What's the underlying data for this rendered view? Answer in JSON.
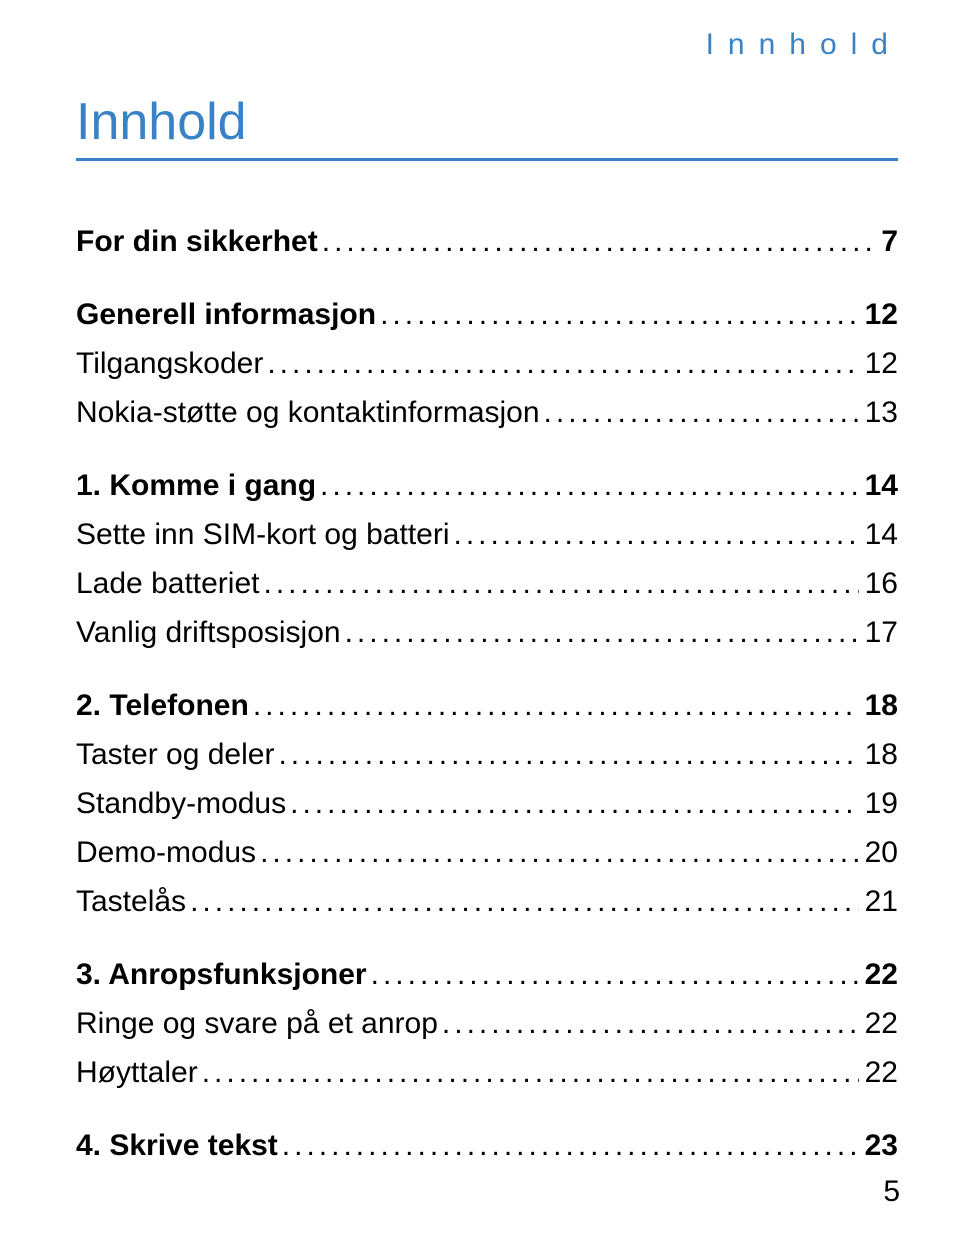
{
  "header_text": "Innhold",
  "main_title": "Innhold",
  "page_number": "5",
  "colors": {
    "accent": "#3882c5",
    "text": "#000000",
    "background": "#ffffff"
  },
  "typography": {
    "header_fontsize": 30,
    "header_letterspacing": 14,
    "title_fontsize": 52,
    "body_fontsize": 30
  },
  "toc": [
    {
      "level": "section",
      "title": "For din sikkerhet",
      "page": "7"
    },
    {
      "level": "section",
      "title": "Generell informasjon",
      "page": "12"
    },
    {
      "level": "sub",
      "title": "Tilgangskoder",
      "page": "12"
    },
    {
      "level": "sub",
      "title": "Nokia-støtte og kontaktinformasjon",
      "page": "13"
    },
    {
      "level": "section",
      "title": "1. Komme i gang",
      "page": "14"
    },
    {
      "level": "sub",
      "title": "Sette inn SIM-kort og batteri",
      "page": "14"
    },
    {
      "level": "sub",
      "title": "Lade batteriet",
      "page": "16"
    },
    {
      "level": "sub",
      "title": "Vanlig driftsposisjon",
      "page": "17"
    },
    {
      "level": "section",
      "title": "2. Telefonen",
      "page": "18"
    },
    {
      "level": "sub",
      "title": "Taster og deler",
      "page": "18"
    },
    {
      "level": "sub",
      "title": "Standby-modus",
      "page": "19"
    },
    {
      "level": "sub",
      "title": "Demo-modus",
      "page": "20"
    },
    {
      "level": "sub",
      "title": "Tastelås",
      "page": "21"
    },
    {
      "level": "section",
      "title": "3. Anropsfunksjoner",
      "page": "22"
    },
    {
      "level": "sub",
      "title": "Ringe og svare på et anrop",
      "page": "22"
    },
    {
      "level": "sub",
      "title": "Høyttaler",
      "page": "22"
    },
    {
      "level": "section",
      "title": "4. Skrive tekst",
      "page": "23"
    }
  ]
}
